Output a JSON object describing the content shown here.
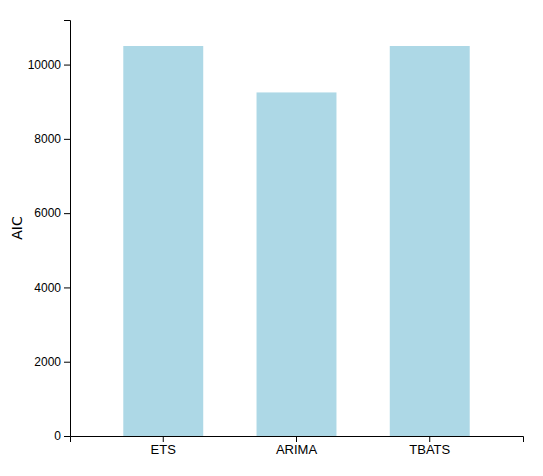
{
  "chart_data": {
    "type": "bar",
    "categories": [
      "ETS",
      "ARIMA",
      "TBATS"
    ],
    "values": [
      10500,
      9250,
      10500
    ],
    "color": "#add8e6",
    "ylabel": "AIC",
    "ylim": [
      0,
      11200
    ],
    "yticks": [
      0,
      2000,
      4000,
      6000,
      8000,
      10000
    ],
    "grid": false
  }
}
